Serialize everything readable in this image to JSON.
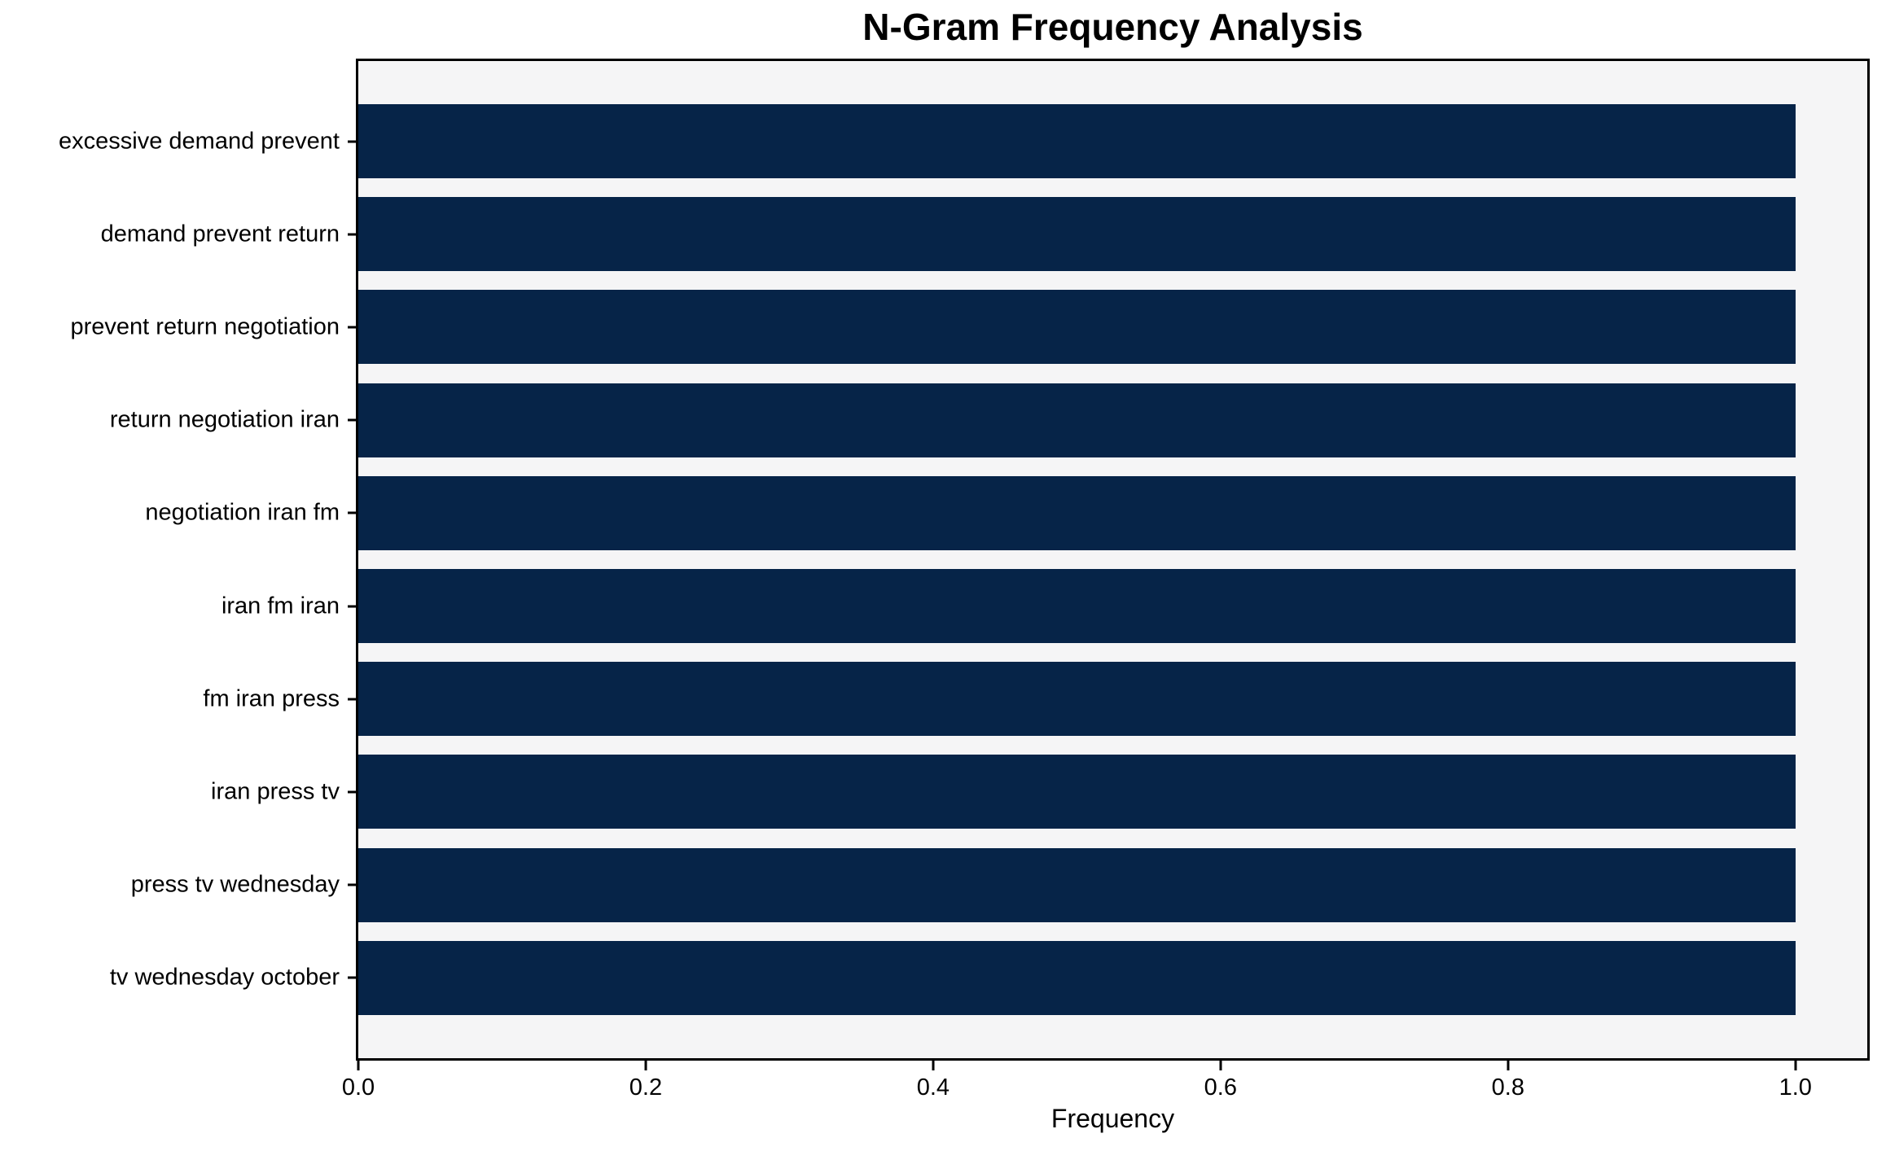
{
  "chart_data": {
    "type": "bar",
    "orientation": "horizontal",
    "title": "N-Gram Frequency Analysis",
    "xlabel": "Frequency",
    "ylabel": "",
    "categories": [
      "excessive demand prevent",
      "demand prevent return",
      "prevent return negotiation",
      "return negotiation iran",
      "negotiation iran fm",
      "iran fm iran",
      "fm iran press",
      "iran press tv",
      "press tv wednesday",
      "tv wednesday october"
    ],
    "values": [
      1.0,
      1.0,
      1.0,
      1.0,
      1.0,
      1.0,
      1.0,
      1.0,
      1.0,
      1.0
    ],
    "xlim": [
      0,
      1.05
    ],
    "xtick_values": [
      0.0,
      0.2,
      0.4,
      0.6,
      0.8,
      1.0
    ],
    "xtick_labels": [
      "0.0",
      "0.2",
      "0.4",
      "0.6",
      "0.8",
      "1.0"
    ],
    "bar_color": "#062448",
    "plot_bg": "#f5f5f6",
    "grid": false,
    "legend": null
  }
}
